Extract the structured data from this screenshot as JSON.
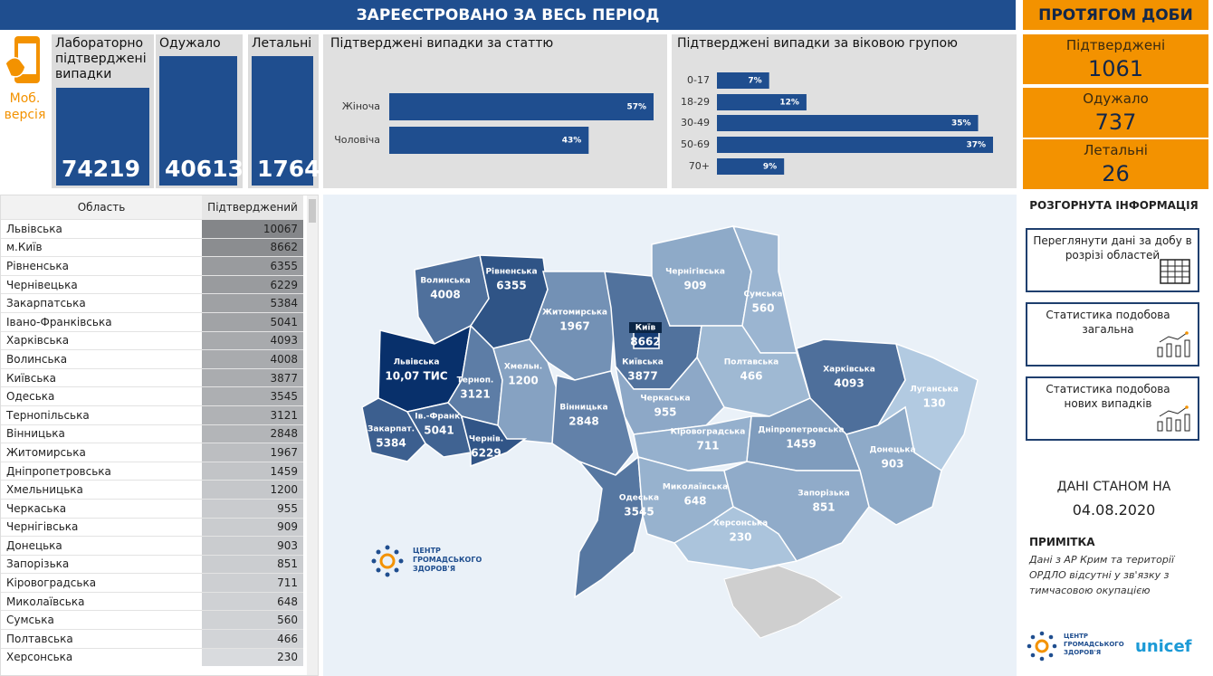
{
  "mobile": {
    "label": "Моб. версія"
  },
  "header": {
    "title": "ЗАРЕЄСТРОВАНО ЗА ВЕСЬ ПЕРІОД",
    "daily_title": "ПРОТЯГОМ ДОБИ"
  },
  "totals": [
    {
      "label": "Лабораторно підтверджені випадки",
      "value": 74219
    },
    {
      "label": "Одужало",
      "value": 40613
    },
    {
      "label": "Летальні",
      "value": 1764
    }
  ],
  "daily": [
    {
      "label": "Підтверджені",
      "value": 1061
    },
    {
      "label": "Одужало",
      "value": 737
    },
    {
      "label": "Летальні",
      "value": 26
    }
  ],
  "by_sex": {
    "title": "Підтверджені випадки за статтю",
    "categories": [
      "Жіноча",
      "Чоловіча"
    ],
    "values": [
      57,
      43
    ],
    "value_labels": [
      "57%",
      "43%"
    ]
  },
  "by_age": {
    "title": "Підтверджені випадки за віковою групою",
    "categories": [
      "0-17",
      "18-29",
      "30-49",
      "50-69",
      "70+"
    ],
    "values": [
      7,
      12,
      35,
      37,
      9
    ],
    "value_labels": [
      "7%",
      "12%",
      "35%",
      "37%",
      "9%"
    ]
  },
  "table": {
    "columns": [
      "Область",
      "Підтверджений"
    ],
    "rows": [
      [
        "Львівська",
        10067
      ],
      [
        "м.Київ",
        8662
      ],
      [
        "Рівненська",
        6355
      ],
      [
        "Чернівецька",
        6229
      ],
      [
        "Закарпатська",
        5384
      ],
      [
        "Івано-Франківська",
        5041
      ],
      [
        "Харківська",
        4093
      ],
      [
        "Волинська",
        4008
      ],
      [
        "Київська",
        3877
      ],
      [
        "Одеська",
        3545
      ],
      [
        "Тернопільська",
        3121
      ],
      [
        "Вінницька",
        2848
      ],
      [
        "Житомирська",
        1967
      ],
      [
        "Дніпропетровська",
        1459
      ],
      [
        "Хмельницька",
        1200
      ],
      [
        "Черкаська",
        955
      ],
      [
        "Чернігівська",
        909
      ],
      [
        "Донецька",
        903
      ],
      [
        "Запорізька",
        851
      ],
      [
        "Кіровоградська",
        711
      ],
      [
        "Миколаївська",
        648
      ],
      [
        "Сумська",
        560
      ],
      [
        "Полтавська",
        466
      ],
      [
        "Херсонська",
        230
      ]
    ]
  },
  "map": {
    "regions": [
      {
        "name": "Волинська",
        "value": 4008
      },
      {
        "name": "Рівненська",
        "value": 6355
      },
      {
        "name": "Житомирська",
        "value": 1967
      },
      {
        "name": "Київська",
        "value": 3877
      },
      {
        "name": "Київ",
        "value": 8662
      },
      {
        "name": "Чернігівська",
        "value": 909
      },
      {
        "name": "Сумська",
        "value": 560
      },
      {
        "name": "Харківська",
        "value": 4093
      },
      {
        "name": "Луганська",
        "value": 130
      },
      {
        "name": "Полтавська",
        "value": 466
      },
      {
        "name": "Львівська",
        "value": 10067,
        "value_label": "10,07 ТИС"
      },
      {
        "name": "Терноп.",
        "value": 3121
      },
      {
        "name": "Хмельн.",
        "value": 1200
      },
      {
        "name": "Вінницька",
        "value": 2848
      },
      {
        "name": "Черкаська",
        "value": 955
      },
      {
        "name": "Кіровоградська",
        "value": 711
      },
      {
        "name": "Дніпропетровська",
        "value": 1459
      },
      {
        "name": "Донецька",
        "value": 903
      },
      {
        "name": "Закарпат.",
        "value": 5384
      },
      {
        "name": "Ів.-Франк.",
        "value": 5041
      },
      {
        "name": "Чернів.",
        "value": 6229
      },
      {
        "name": "Одеська",
        "value": 3545
      },
      {
        "name": "Миколаївська",
        "value": 648
      },
      {
        "name": "Запорізька",
        "value": 851
      },
      {
        "name": "Херсонська",
        "value": 230
      }
    ]
  },
  "logo": "ЦЕНТР ГРОМАДСЬКОГО ЗДОРОВ'Я",
  "side": {
    "title": "РОЗГОРНУТА ІНФОРМАЦІЯ",
    "buttons": [
      "Переглянути дані за добу в розрізі областей",
      "Статистика подобова загальна",
      "Статистика подобова нових випадків"
    ],
    "date_label": "ДАНІ СТАНОМ НА",
    "date": "04.08.2020",
    "note_title": "ПРИМІТКА",
    "note": "Дані з АР Крим та території ОРДЛО відсутні у зв'язку з тимчасовою окупацією",
    "partner": "unicef"
  }
}
